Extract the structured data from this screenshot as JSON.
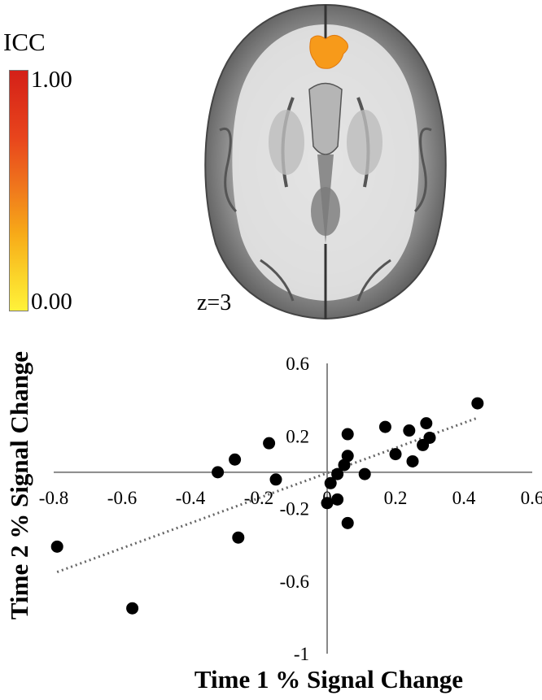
{
  "colorbar": {
    "title": "ICC",
    "max_label": "1.00",
    "min_label": "0.00",
    "colors": [
      "#d42018",
      "#f07a1c",
      "#fbd52a",
      "#fff23a"
    ]
  },
  "brain_image": {
    "slice_label": "z=3",
    "highlight_color": "#f79a1a"
  },
  "chart_data": {
    "type": "scatter",
    "xlabel": "Time 1 % Signal Change",
    "ylabel": "Time 2 % Signal Change",
    "xlim": [
      -0.8,
      0.6
    ],
    "ylim": [
      -1.0,
      0.6
    ],
    "x_ticks": [
      -0.8,
      -0.6,
      -0.4,
      -0.2,
      0,
      0.2,
      0.4,
      0.6
    ],
    "x_tick_labels": [
      "-0.8",
      "-0.6",
      "-0.4",
      "-0.2",
      "0",
      "0.2",
      "0.4",
      "0.6"
    ],
    "y_ticks": [
      0.6,
      0.2,
      -0.2,
      -0.6,
      -1.0
    ],
    "y_tick_labels": [
      "0.6",
      "0.2",
      "-0.2",
      "-0.6",
      "-1"
    ],
    "point_color": "#000000",
    "trendline": {
      "style": "dotted",
      "color": "#666666",
      "x": [
        -0.79,
        0.44
      ],
      "y": [
        -0.55,
        0.3
      ]
    },
    "points": [
      {
        "x": 0.44,
        "y": 0.38
      },
      {
        "x": 0.29,
        "y": 0.27
      },
      {
        "x": 0.3,
        "y": 0.19
      },
      {
        "x": 0.17,
        "y": 0.25
      },
      {
        "x": 0.24,
        "y": 0.23
      },
      {
        "x": 0.28,
        "y": 0.15
      },
      {
        "x": 0.2,
        "y": 0.1
      },
      {
        "x": 0.25,
        "y": 0.06
      },
      {
        "x": 0.06,
        "y": 0.21
      },
      {
        "x": 0.06,
        "y": 0.09
      },
      {
        "x": 0.05,
        "y": 0.04
      },
      {
        "x": 0.03,
        "y": -0.01
      },
      {
        "x": 0.01,
        "y": -0.06
      },
      {
        "x": 0.11,
        "y": -0.01
      },
      {
        "x": 0.03,
        "y": -0.15
      },
      {
        "x": 0.0,
        "y": -0.17
      },
      {
        "x": 0.06,
        "y": -0.28
      },
      {
        "x": -0.17,
        "y": 0.16
      },
      {
        "x": -0.27,
        "y": 0.07
      },
      {
        "x": -0.32,
        "y": 0.0
      },
      {
        "x": -0.15,
        "y": -0.04
      },
      {
        "x": -0.26,
        "y": -0.36
      },
      {
        "x": -0.79,
        "y": -0.41
      },
      {
        "x": -0.57,
        "y": -0.75
      }
    ]
  }
}
